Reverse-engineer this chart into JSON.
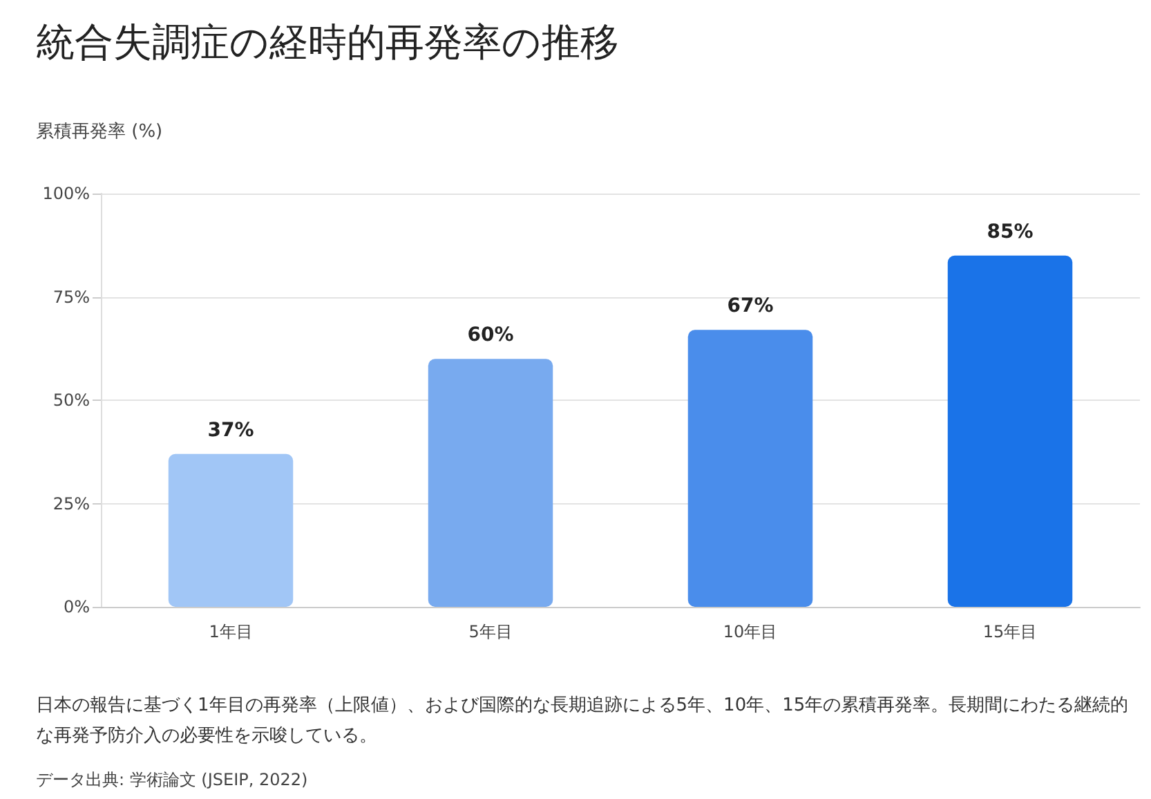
{
  "chart_data": {
    "type": "bar",
    "title": "統合失調症の経時的再発率の推移",
    "ylabel": "累積再発率 (%)",
    "categories": [
      "1年目",
      "5年目",
      "10年目",
      "15年目"
    ],
    "values": [
      37,
      60,
      67,
      85
    ],
    "colors": [
      "#a1c6f6",
      "#78aaef",
      "#4a8deb",
      "#1a73e8"
    ],
    "value_labels": [
      "37%",
      "60%",
      "67%",
      "85%"
    ],
    "ylim": [
      0,
      100
    ],
    "yticks": [
      {
        "value": 0,
        "label": "0%"
      },
      {
        "value": 25,
        "label": "25%"
      },
      {
        "value": 50,
        "label": "50%"
      },
      {
        "value": 75,
        "label": "75%"
      },
      {
        "value": 100,
        "label": "100%"
      }
    ],
    "grid": "y",
    "annotations": [
      "日本の報告に基づく1年目の再発率（上限値）、および国際的な長期追跡による5年、10年、15年の累積再発率。長期間にわたる継続的な再発予防介入の必要性を示唆している。",
      "データ出典: 学術論文 (JSEIP, 2022)"
    ]
  }
}
